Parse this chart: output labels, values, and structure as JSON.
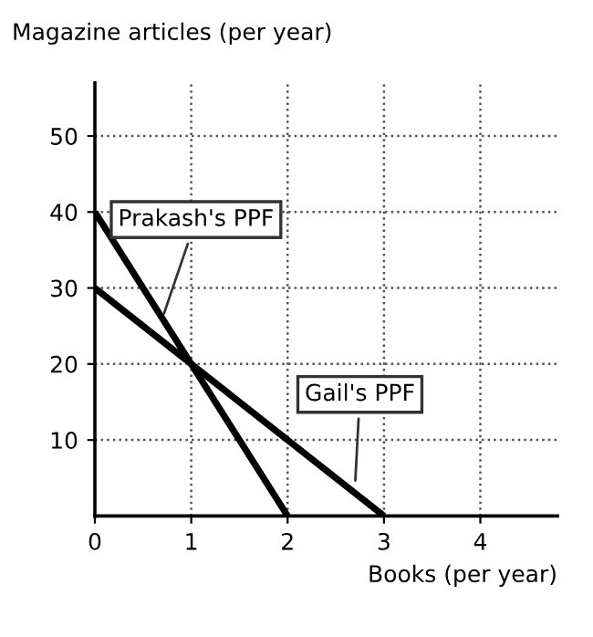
{
  "chart_data": {
    "type": "line",
    "xlabel": "Books (per year)",
    "ylabel": "Magazine articles (per year)",
    "series": [
      {
        "x": [
          0,
          2
        ],
        "values": [
          40,
          0
        ],
        "color": "#000000"
      },
      {
        "x": [
          0,
          3
        ],
        "values": [
          30,
          0
        ],
        "color": "#000000"
      }
    ],
    "annotations": [
      {
        "text": "Prakash's PPF",
        "x": 0.7,
        "y": 26
      },
      {
        "text": "Gail's PPF",
        "x": 2.7,
        "y": 4
      }
    ],
    "xlim": [
      0,
      4.8
    ],
    "ylim": [
      0,
      57
    ],
    "xticks": [
      0,
      1,
      2,
      3,
      4
    ],
    "yticks": [
      10,
      20,
      30,
      40,
      50
    ],
    "grid": true,
    "marker": "none",
    "line_style": "solid"
  }
}
